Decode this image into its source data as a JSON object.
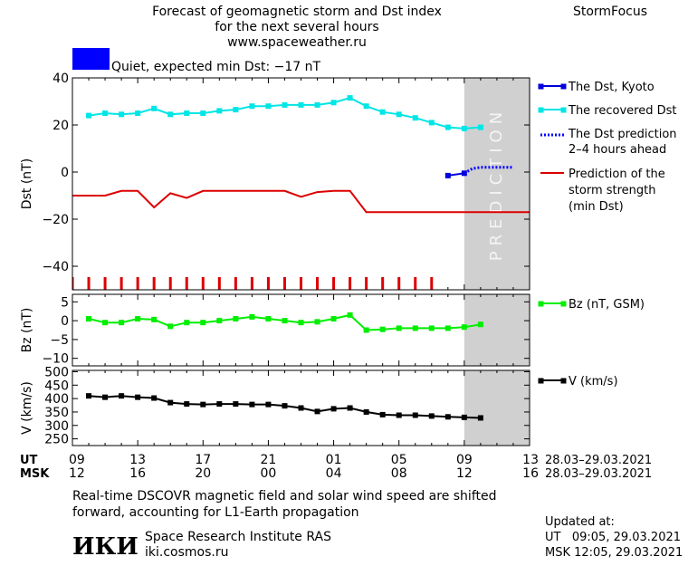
{
  "header": {
    "title_lines": [
      "Forecast of geomagnetic storm and Dst index",
      "for the next several hours",
      "www.spaceweather.ru"
    ],
    "brand": "StormFocus",
    "status_text": "Quiet, expected min Dst: −17 nT",
    "status_color": "#0000ff"
  },
  "prediction_label": "PREDICTION",
  "legend": {
    "dst_kyoto": "The Dst, Kyoto",
    "dst_recovered": "The recovered Dst",
    "dst_prediction": [
      "The Dst prediction",
      "2–4 hours ahead"
    ],
    "storm_strength": [
      "Prediction of the",
      "storm strength",
      "(min Dst)"
    ],
    "bz": "Bz (nT, GSM)",
    "v": "V (km/s)"
  },
  "colors": {
    "kyoto": "#0000dd",
    "recovered": "#00e5e5",
    "prediction": "#0000ff",
    "storm": "#dd0000",
    "bz": "#00ee00",
    "v": "#000000",
    "prediction_zone": "#d0d0d0"
  },
  "chart_data": {
    "type": "line",
    "x_axis": {
      "ut_label": "UT",
      "msk_label": "MSK",
      "range_hours": [
        0,
        28
      ],
      "ticks": [
        {
          "h": 0,
          "ut": "09",
          "msk": "12"
        },
        {
          "h": 4,
          "ut": "13",
          "msk": "16"
        },
        {
          "h": 8,
          "ut": "17",
          "msk": "20"
        },
        {
          "h": 12,
          "ut": "21",
          "msk": "00"
        },
        {
          "h": 16,
          "ut": "01",
          "msk": "04"
        },
        {
          "h": 20,
          "ut": "05",
          "msk": "08"
        },
        {
          "h": 24,
          "ut": "09",
          "msk": "12"
        },
        {
          "h": 28,
          "ut": "13",
          "msk": "16"
        }
      ],
      "date_range": "28.03–29.03.2021",
      "prediction_from_h": 24
    },
    "panels": [
      {
        "id": "dst",
        "ylabel": "Dst (nT)",
        "ylim": [
          -50,
          40
        ],
        "yticks": [
          -40,
          -20,
          0,
          20,
          40
        ],
        "series": [
          {
            "key": "recovered",
            "x": [
              1,
              2,
              3,
              4,
              5,
              6,
              7,
              8,
              9,
              10,
              11,
              12,
              13,
              14,
              15,
              16,
              17,
              18,
              19,
              20,
              21,
              22,
              23,
              24,
              25
            ],
            "y": [
              24,
              25,
              24.5,
              25,
              27,
              24.5,
              25,
              25,
              26,
              26.5,
              28,
              28,
              28.5,
              28.5,
              28.5,
              29.5,
              31.5,
              28,
              25.5,
              24.5,
              23,
              21,
              19,
              18.5,
              19
            ]
          },
          {
            "key": "kyoto",
            "x": [
              23,
              24
            ],
            "y": [
              -1.5,
              -0.5
            ]
          },
          {
            "key": "prediction",
            "x": [
              24,
              24.5,
              25,
              26,
              27
            ],
            "y": [
              -0.5,
              1.5,
              2,
              2,
              2
            ]
          },
          {
            "key": "storm",
            "x": [
              -1,
              0,
              1,
              2,
              3,
              4,
              5,
              6,
              7,
              8,
              9,
              10,
              11,
              12,
              13,
              14,
              15,
              16,
              17,
              18,
              19,
              20,
              21,
              22,
              23,
              24,
              25,
              26,
              27,
              28
            ],
            "y": [
              -8.5,
              -10,
              -10,
              -10,
              -8,
              -8,
              -15,
              -9,
              -11,
              -8,
              -8,
              -8,
              -8,
              -8,
              -8,
              -10.5,
              -8.5,
              -8,
              -8,
              -17,
              -17,
              -17,
              -17,
              -17,
              -17,
              -17,
              -17,
              -17,
              -17,
              -17
            ]
          }
        ],
        "red_markers_x": [
          0,
          1,
          2,
          3,
          4,
          5,
          6,
          7,
          8,
          9,
          10,
          11,
          12,
          13,
          14,
          15,
          16,
          17,
          18,
          19,
          20,
          21,
          22
        ]
      },
      {
        "id": "bz",
        "ylabel": "Bz (nT)",
        "ylim": [
          -12,
          7
        ],
        "yticks": [
          -10,
          -5,
          0,
          5
        ],
        "series": [
          {
            "key": "bz",
            "x": [
              1,
              2,
              3,
              4,
              5,
              6,
              7,
              8,
              9,
              10,
              11,
              12,
              13,
              14,
              15,
              16,
              17,
              18,
              19,
              20,
              21,
              22,
              23,
              24,
              25
            ],
            "y": [
              0.5,
              -0.5,
              -0.5,
              0.5,
              0.3,
              -1.5,
              -0.5,
              -0.5,
              0,
              0.5,
              1,
              0.5,
              0,
              -0.5,
              -0.3,
              0.5,
              1.5,
              -2.5,
              -2.3,
              -2,
              -2,
              -2,
              -2,
              -1.7,
              -1
            ]
          }
        ]
      },
      {
        "id": "v",
        "ylabel": "V (km/s)",
        "ylim": [
          225,
          505
        ],
        "yticks": [
          250,
          300,
          350,
          400,
          450,
          500
        ],
        "series": [
          {
            "key": "v",
            "x": [
              1,
              2,
              3,
              4,
              5,
              6,
              7,
              8,
              9,
              10,
              11,
              12,
              13,
              14,
              15,
              16,
              17,
              18,
              19,
              20,
              21,
              22,
              23,
              24,
              25
            ],
            "y": [
              410,
              405,
              410,
              405,
              402,
              385,
              380,
              378,
              380,
              380,
              378,
              378,
              373,
              365,
              352,
              362,
              365,
              350,
              340,
              338,
              338,
              335,
              332,
              330,
              328
            ]
          }
        ]
      }
    ]
  },
  "footer": {
    "note_lines": [
      "Real-time DSCOVR magnetic field and solar wind speed are shifted",
      "forward, accounting for L1-Earth propagation"
    ],
    "logo_text": "ИКИ",
    "institute": "Space Research Institute RAS",
    "site": "iki.cosmos.ru",
    "updated_label": "Updated at:",
    "updated_ut": "UT   09:05, 29.03.2021",
    "updated_msk": "MSK 12:05, 29.03.2021"
  }
}
